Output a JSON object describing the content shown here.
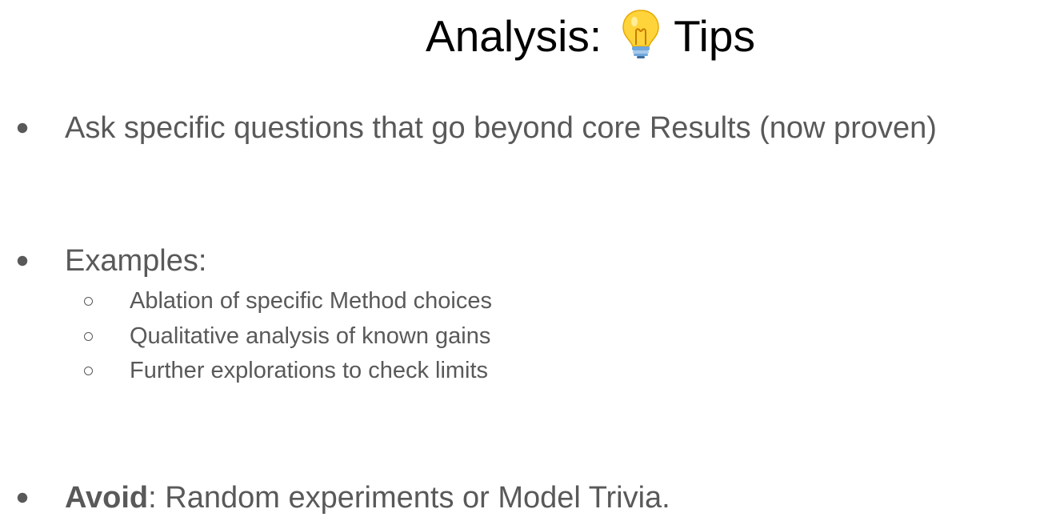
{
  "slide": {
    "title_prefix": "Analysis:",
    "title_icon": "lightbulb-icon",
    "title_suffix": "Tips",
    "bullets": [
      {
        "text": "Ask specific questions that go beyond core Results (now proven)"
      },
      {
        "text": "Examples:",
        "subitems": [
          "Ablation of specific Method choices",
          "Qualitative analysis of known gains",
          "Further explorations to check limits"
        ]
      },
      {
        "bold": "Avoid",
        "rest": ": Random experiments or Model Trivia."
      }
    ]
  }
}
